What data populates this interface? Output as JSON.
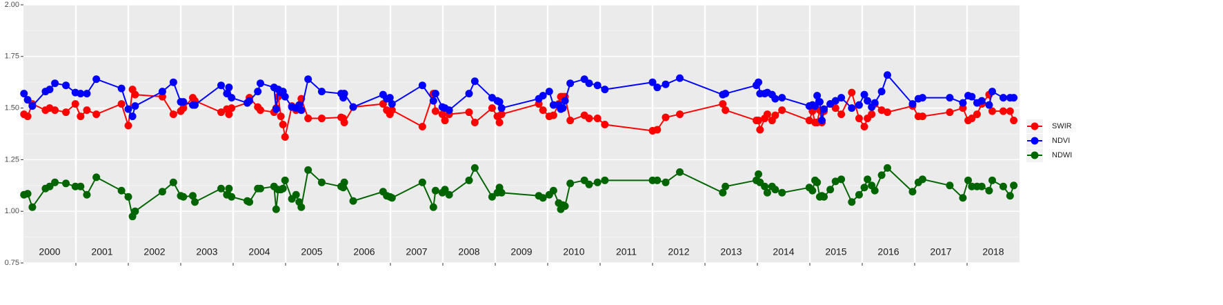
{
  "chart_data": {
    "type": "line",
    "x": [
      2000.01,
      2000.08,
      2000.17,
      2000.42,
      2000.5,
      2000.6,
      2000.81,
      2000.99,
      2001.09,
      2001.21,
      2001.39,
      2001.87,
      2002.0,
      2002.08,
      2002.13,
      2002.65,
      2002.86,
      2003.0,
      2003.05,
      2003.23,
      2003.27,
      2003.77,
      2003.88,
      2003.92,
      2003.97,
      2004.27,
      2004.31,
      2004.47,
      2004.52,
      2004.78,
      2004.82,
      2004.86,
      2004.91,
      2004.95,
      2004.99,
      2005.12,
      2005.2,
      2005.26,
      2005.3,
      2005.43,
      2005.69,
      2006.06,
      2006.1,
      2006.12,
      2006.29,
      2006.86,
      2006.93,
      2006.99,
      2007.03,
      2007.61,
      2007.82,
      2007.86,
      2007.99,
      2008.04,
      2008.12,
      2008.5,
      2008.61,
      2008.94,
      2009.04,
      2009.08,
      2009.12,
      2009.83,
      2009.91,
      2010.03,
      2010.11,
      2010.21,
      2010.25,
      2010.29,
      2010.33,
      2010.43,
      2010.7,
      2010.79,
      2010.95,
      2011.09,
      2012.0,
      2012.09,
      2012.25,
      2012.52,
      2013.34,
      2013.39,
      2013.98,
      2014.02,
      2014.05,
      2014.14,
      2014.19,
      2014.28,
      2014.34,
      2014.47,
      2014.99,
      2015.05,
      2015.1,
      2015.14,
      2015.19,
      2015.23,
      2015.27,
      2015.39,
      2015.49,
      2015.6,
      2015.8,
      2015.94,
      2016.04,
      2016.1,
      2016.18,
      2016.24,
      2016.37,
      2016.48,
      2016.96,
      2017.07,
      2017.15,
      2017.67,
      2017.92,
      2018.02,
      2018.09,
      2018.19,
      2018.28,
      2018.42,
      2018.48,
      2018.69,
      2018.82,
      2018.89
    ],
    "series": [
      {
        "name": "SWIR",
        "color": "#ff0000",
        "values": [
          1.47,
          1.46,
          1.52,
          1.49,
          1.5,
          1.49,
          1.48,
          1.52,
          1.46,
          1.49,
          1.47,
          1.52,
          1.415,
          1.59,
          1.565,
          1.555,
          1.47,
          1.485,
          1.5,
          1.55,
          1.535,
          1.48,
          1.495,
          1.47,
          1.5,
          1.525,
          1.55,
          1.505,
          1.49,
          1.48,
          1.5,
          1.555,
          1.46,
          1.42,
          1.36,
          1.51,
          1.49,
          1.5,
          1.545,
          1.45,
          1.45,
          1.455,
          1.45,
          1.43,
          1.505,
          1.52,
          1.49,
          1.47,
          1.49,
          1.41,
          1.57,
          1.485,
          1.47,
          1.44,
          1.47,
          1.48,
          1.43,
          1.5,
          1.46,
          1.43,
          1.47,
          1.52,
          1.49,
          1.46,
          1.465,
          1.52,
          1.555,
          1.555,
          1.555,
          1.44,
          1.465,
          1.45,
          1.45,
          1.42,
          1.39,
          1.395,
          1.455,
          1.47,
          1.52,
          1.49,
          1.44,
          1.44,
          1.395,
          1.45,
          1.47,
          1.44,
          1.465,
          1.49,
          1.44,
          1.485,
          1.43,
          1.43,
          1.49,
          1.43,
          1.485,
          1.52,
          1.5,
          1.47,
          1.575,
          1.45,
          1.41,
          1.45,
          1.47,
          1.52,
          1.49,
          1.48,
          1.51,
          1.46,
          1.46,
          1.48,
          1.5,
          1.44,
          1.45,
          1.47,
          1.52,
          1.565,
          1.485,
          1.485,
          1.485,
          1.44
        ]
      },
      {
        "name": "NDVI",
        "color": "#0000ff",
        "values": [
          1.57,
          1.54,
          1.51,
          1.58,
          1.59,
          1.62,
          1.61,
          1.575,
          1.57,
          1.57,
          1.64,
          1.595,
          1.495,
          1.46,
          1.51,
          1.58,
          1.625,
          1.53,
          1.53,
          1.515,
          1.515,
          1.61,
          1.57,
          1.6,
          1.55,
          1.525,
          1.535,
          1.58,
          1.62,
          1.6,
          1.495,
          1.59,
          1.575,
          1.58,
          1.555,
          1.505,
          1.5,
          1.515,
          1.49,
          1.64,
          1.58,
          1.57,
          1.55,
          1.57,
          1.505,
          1.565,
          1.545,
          1.55,
          1.52,
          1.61,
          1.535,
          1.57,
          1.505,
          1.5,
          1.49,
          1.57,
          1.63,
          1.55,
          1.535,
          1.53,
          1.5,
          1.545,
          1.56,
          1.58,
          1.515,
          1.515,
          1.495,
          1.5,
          1.535,
          1.62,
          1.64,
          1.62,
          1.61,
          1.59,
          1.625,
          1.6,
          1.615,
          1.645,
          1.565,
          1.57,
          1.61,
          1.625,
          1.57,
          1.57,
          1.575,
          1.565,
          1.545,
          1.55,
          1.51,
          1.515,
          1.51,
          1.56,
          1.53,
          1.44,
          1.495,
          1.52,
          1.535,
          1.55,
          1.5,
          1.515,
          1.565,
          1.535,
          1.505,
          1.525,
          1.58,
          1.66,
          1.52,
          1.545,
          1.55,
          1.55,
          1.525,
          1.56,
          1.555,
          1.525,
          1.535,
          1.515,
          1.58,
          1.55,
          1.55,
          1.55
        ]
      },
      {
        "name": "NDWI",
        "color": "#006400",
        "values": [
          1.08,
          1.085,
          1.02,
          1.11,
          1.12,
          1.14,
          1.135,
          1.12,
          1.12,
          1.08,
          1.165,
          1.1,
          1.07,
          0.975,
          1.0,
          1.095,
          1.14,
          1.075,
          1.07,
          1.075,
          1.045,
          1.11,
          1.08,
          1.11,
          1.07,
          1.05,
          1.045,
          1.11,
          1.11,
          1.12,
          1.01,
          1.105,
          1.105,
          1.11,
          1.15,
          1.06,
          1.08,
          1.045,
          1.02,
          1.2,
          1.14,
          1.12,
          1.115,
          1.14,
          1.05,
          1.095,
          1.075,
          1.07,
          1.065,
          1.14,
          1.02,
          1.1,
          1.09,
          1.105,
          1.08,
          1.15,
          1.21,
          1.07,
          1.09,
          1.115,
          1.09,
          1.075,
          1.065,
          1.08,
          1.1,
          1.04,
          1.01,
          1.03,
          1.025,
          1.135,
          1.15,
          1.13,
          1.14,
          1.15,
          1.15,
          1.15,
          1.14,
          1.19,
          1.09,
          1.12,
          1.15,
          1.18,
          1.14,
          1.12,
          1.09,
          1.12,
          1.105,
          1.09,
          1.115,
          1.1,
          1.15,
          1.14,
          1.07,
          1.075,
          1.07,
          1.105,
          1.145,
          1.155,
          1.045,
          1.08,
          1.115,
          1.155,
          1.125,
          1.1,
          1.175,
          1.21,
          1.095,
          1.14,
          1.155,
          1.125,
          1.065,
          1.15,
          1.12,
          1.12,
          1.12,
          1.1,
          1.15,
          1.12,
          1.075,
          1.125
        ]
      }
    ],
    "xlim": [
      2000,
      2019
    ],
    "xticks": [
      {
        "value": 2000.5,
        "label": "2000"
      },
      {
        "value": 2001.5,
        "label": "2001"
      },
      {
        "value": 2002.5,
        "label": "2002"
      },
      {
        "value": 2003.5,
        "label": "2003"
      },
      {
        "value": 2004.5,
        "label": "2004"
      },
      {
        "value": 2005.5,
        "label": "2005"
      },
      {
        "value": 2006.5,
        "label": "2006"
      },
      {
        "value": 2007.5,
        "label": "2007"
      },
      {
        "value": 2008.5,
        "label": "2008"
      },
      {
        "value": 2009.5,
        "label": "2009"
      },
      {
        "value": 2010.5,
        "label": "2010"
      },
      {
        "value": 2011.5,
        "label": "2011"
      },
      {
        "value": 2012.5,
        "label": "2012"
      },
      {
        "value": 2013.5,
        "label": "2013"
      },
      {
        "value": 2014.5,
        "label": "2014"
      },
      {
        "value": 2015.5,
        "label": "2015"
      },
      {
        "value": 2016.5,
        "label": "2016"
      },
      {
        "value": 2017.5,
        "label": "2017"
      },
      {
        "value": 2018.5,
        "label": "2018"
      }
    ],
    "year_boundaries": [
      2001,
      2002,
      2003,
      2004,
      2005,
      2006,
      2007,
      2008,
      2009,
      2010,
      2011,
      2012,
      2013,
      2014,
      2015,
      2016,
      2017,
      2018
    ],
    "ylim": [
      0.75,
      2.0
    ],
    "yticks": [
      {
        "value": 0.75,
        "label": "0.75"
      },
      {
        "value": 1.0,
        "label": "1.00"
      },
      {
        "value": 1.25,
        "label": "1.25"
      },
      {
        "value": 1.5,
        "label": "1.50"
      },
      {
        "value": 1.75,
        "label": "1.75"
      },
      {
        "value": 2.0,
        "label": "2.00"
      }
    ],
    "yminor": [
      0.875,
      1.125,
      1.375,
      1.625,
      1.875
    ],
    "grid": true,
    "legend": "right"
  }
}
